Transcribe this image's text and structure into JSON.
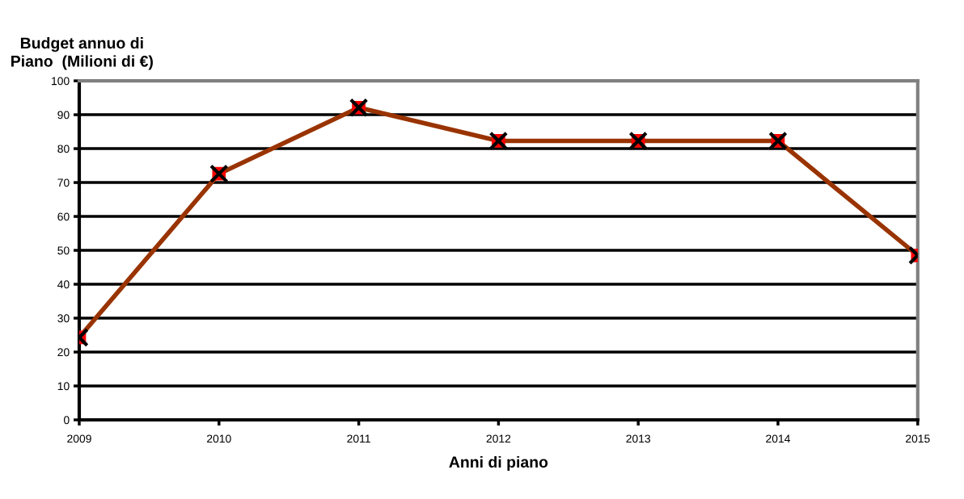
{
  "chart_data": {
    "type": "line",
    "ylabel": "Budget annuo di\nPiano  (Milioni di €)",
    "xlabel": "Anni di piano",
    "categories": [
      "2009",
      "2010",
      "2011",
      "2012",
      "2013",
      "2014",
      "2015"
    ],
    "series": [
      {
        "color": "#993300",
        "values": [
          24.3,
          72.6,
          92.1,
          82.3,
          82.3,
          82.3,
          48.5
        ]
      }
    ],
    "ylim": [
      0,
      100
    ],
    "yticks": [
      0,
      10,
      20,
      30,
      40,
      50,
      60,
      70,
      80,
      90,
      100
    ],
    "grid": "y",
    "marker": "square",
    "line_style": "solid",
    "legend": false
  }
}
